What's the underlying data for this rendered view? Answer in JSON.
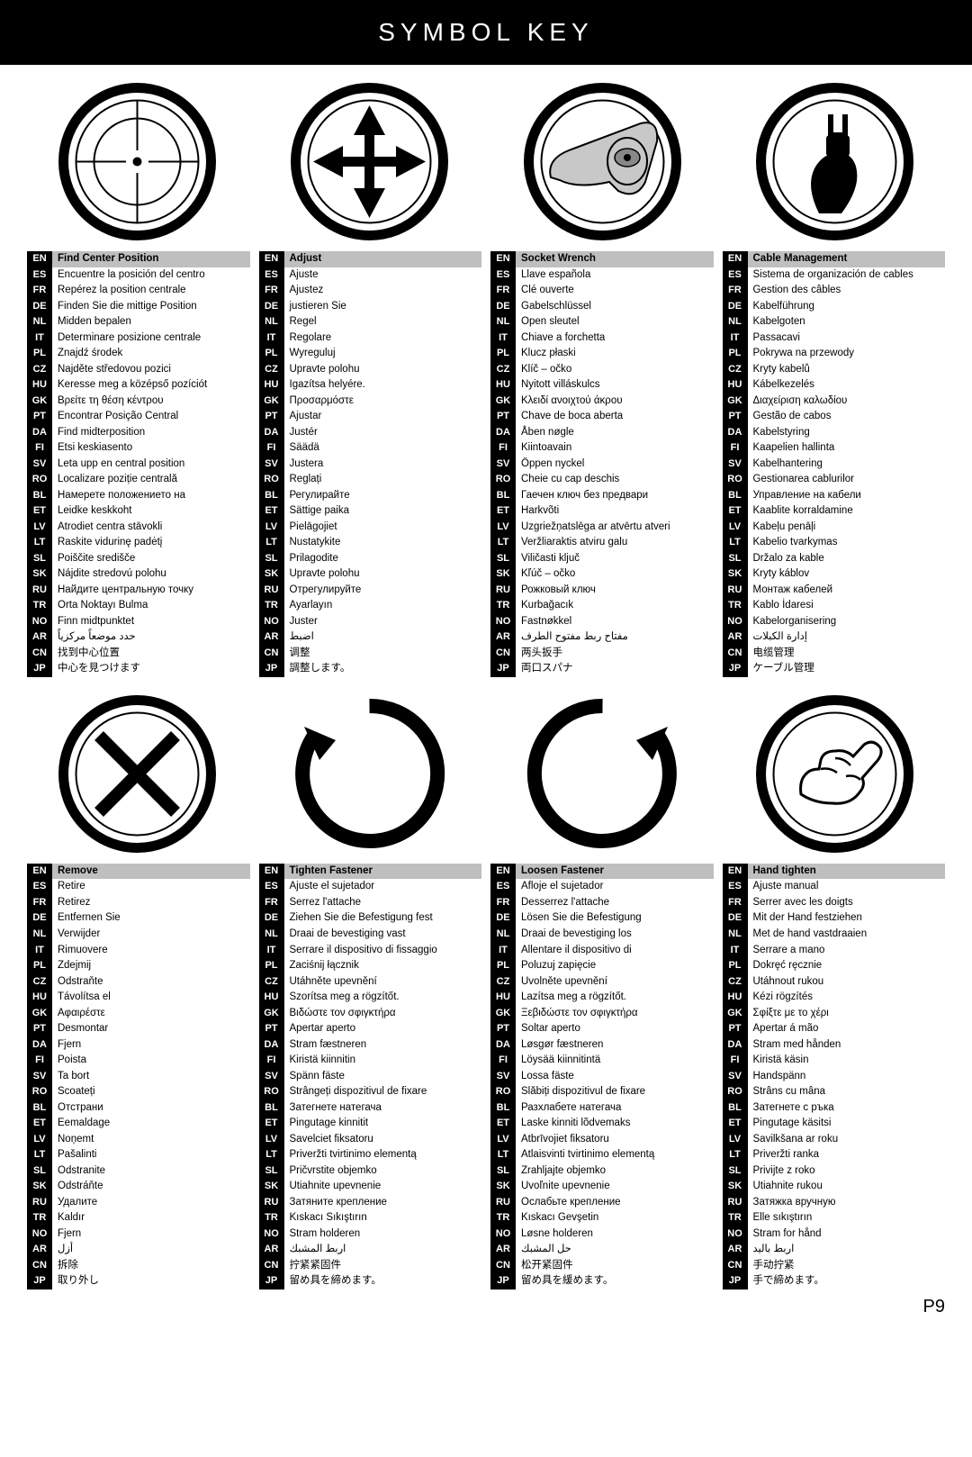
{
  "header": "SYMBOL KEY",
  "page_number": "P9",
  "languages": [
    "EN",
    "ES",
    "FR",
    "DE",
    "NL",
    "IT",
    "PL",
    "CZ",
    "HU",
    "GK",
    "PT",
    "DA",
    "FI",
    "SV",
    "RO",
    "BL",
    "ET",
    "LV",
    "LT",
    "SL",
    "SK",
    "RU",
    "TR",
    "NO",
    "AR",
    "CN",
    "JP"
  ],
  "columns_top": [
    {
      "head": "Find Center Position",
      "rows": [
        "Encuentre la posición del centro",
        "Repérez la position centrale",
        "Finden Sie die mittige Position",
        "Midden bepalen",
        "Determinare posizione centrale",
        "Znajdź środek",
        "Najděte středovou pozici",
        "Keresse meg a középső pozíciót",
        "Βρείτε τη θέση κέντρου",
        "Encontrar Posição Central",
        "Find midterposition",
        "Etsi keskiasento",
        "Leta upp en central position",
        "Localizare poziție centrală",
        "Намерете положението на",
        "Leidke keskkoht",
        "Atrodiet centra stāvokli",
        "Raskite vidurinę padėtį",
        "Poiščite središče",
        "Nájdite stredovú polohu",
        "Найдите центральную точку",
        "Orta Noktayı Bulma",
        "Finn midtpunktet",
        "حدد موضعاً مركزياً",
        "找到中心位置",
        "中心を見つけます"
      ]
    },
    {
      "head": "Adjust",
      "rows": [
        "Ajuste",
        "Ajustez",
        "justieren Sie",
        "Regel",
        "Regolare",
        "Wyreguluj",
        "Upravte polohu",
        "Igazítsa helyére.",
        "Προσαρμόστε",
        "Ajustar",
        "Justér",
        "Säädä",
        "Justera",
        "Reglați",
        "Регулирайте",
        "Sättige paika",
        "Pielāgojiet",
        "Nustatykite",
        "Prilagodite",
        "Upravte polohu",
        "Отрегулируйте",
        "Ayarlayın",
        "Juster",
        "اضبط",
        "调整",
        "調整します。"
      ]
    },
    {
      "head": "Socket Wrench",
      "rows": [
        "Llave española",
        "Clé ouverte",
        "Gabelschlüssel",
        "Open sleutel",
        "Chiave a forchetta",
        "Klucz płaski",
        "Klíč – očko",
        "Nyitott villáskulcs",
        "Κλειδί ανοιχτού άκρου",
        "Chave de boca aberta",
        "Åben nøgle",
        "Kiintoavain",
        "Öppen nyckel",
        "Cheie cu cap deschis",
        "Гаечен ключ без предвари",
        "Harkvõti",
        "Uzgriežņatslēga ar atvērtu atveri",
        "Veržliaraktis atviru galu",
        "Viličasti ključ",
        "Kľúč – očko",
        "Рожковый ключ",
        "Kurbağacık",
        "Fastnøkkel",
        "مفتاح ربط مفتوح الطرف",
        "两头扳手",
        "両口スパナ"
      ]
    },
    {
      "head": "Cable Management",
      "rows": [
        "Sistema de organización de cables",
        "Gestion des câbles",
        "Kabelführung",
        "Kabelgoten",
        "Passacavi",
        "Pokrywa na przewody",
        "Kryty kabelů",
        "Kábelkezelés",
        "Διαχείριση καλωδίου",
        "Gestão de cabos",
        "Kabelstyring",
        "Kaapelien hallinta",
        "Kabelhantering",
        "Gestionarea cablurilor",
        "Управление на кабели",
        "Kaablite korraldamine",
        "Kabeļu penāļi",
        "Kabelio tvarkymas",
        "Držalo za kable",
        "Kryty káblov",
        "Монтаж кабелей",
        "Kablo İdaresi",
        "Kabelorganisering",
        "إدارة الكبلات",
        "电缆管理",
        "ケーブル管理"
      ]
    }
  ],
  "columns_bottom": [
    {
      "head": "Remove",
      "rows": [
        "Retire",
        "Retirez",
        "Entfernen Sie",
        "Verwijder",
        "Rimuovere",
        "Zdejmij",
        "Odstraňte",
        "Távolítsa el",
        "Αφαιρέστε",
        "Desmontar",
        "Fjern",
        "Poista",
        "Ta bort",
        "Scoateți",
        "Отстрани",
        "Eemaldage",
        "Noņemt",
        "Pašalinti",
        "Odstranite",
        "Odstráňte",
        "Удалите",
        "Kaldır",
        "Fjern",
        "أزل",
        "拆除",
        "取り外し"
      ]
    },
    {
      "head": "Tighten Fastener",
      "rows": [
        "Ajuste el sujetador",
        "Serrez l'attache",
        "Ziehen Sie die Befestigung fest",
        "Draai de bevestiging vast",
        "Serrare il dispositivo di fissaggio",
        "Zaciśnij łącznik",
        "Utáhněte upevnění",
        "Szorítsa meg a rögzítőt.",
        "Βιδώστε τον σφιγκτήρα",
        "Apertar aperto",
        "Stram fæstneren",
        "Kiristä kiinnitin",
        "Spänn fäste",
        "Strângeți dispozitivul de fixare",
        "Затегнете натегача",
        "Pingutage kinnitit",
        "Savelciet fiksatoru",
        "Priveržti tvirtinimo elementą",
        "Pričvrstite objemko",
        "Utiahnite upevnenie",
        "Затяните крепление",
        "Kıskacı Sıkıştırın",
        "Stram holderen",
        "اربط المشبك",
        "拧紧紧固件",
        "留め具を締めます。"
      ]
    },
    {
      "head": "Loosen Fastener",
      "rows": [
        "Afloje el sujetador",
        "Desserrez l'attache",
        "Lösen Sie die Befestigung",
        "Draai de bevestiging los",
        "Allentare il dispositivo di",
        "Poluzuj zapięcie",
        "Uvolněte upevnění",
        "Lazítsa meg a rögzítőt.",
        "Ξεβιδώστε τον σφιγκτήρα",
        "Soltar aperto",
        "Løsgør fæstneren",
        "Löysää kiinnitintä",
        "Lossa fäste",
        "Slăbiți dispozitivul de fixare",
        "Разхлабете натегача",
        "Laske kinniti lõdvemaks",
        "Atbrīvojiet fiksatoru",
        "Atlaisvinti tvirtinimo elementą",
        "Zrahljajte objemko",
        "Uvoľnite upevnenie",
        "Ослабьте крепление",
        "Kıskacı Gevşetin",
        "Løsne holderen",
        "حل المشبك",
        "松开紧固件",
        "留め具を緩めます。"
      ]
    },
    {
      "head": "Hand tighten",
      "rows": [
        "Ajuste manual",
        "Serrer avec les doigts",
        "Mit der Hand festziehen",
        "Met de hand vastdraaien",
        "Serrare a mano",
        "Dokręć ręcznie",
        "Utáhnout rukou",
        "Kézi rögzítés",
        "Σφίξτε με το χέρι",
        "Apertar á mão",
        "Stram med hånden",
        "Kiristä käsin",
        "Handspänn",
        "Strâns cu mâna",
        "Затегнете с ръка",
        "Pingutage käsitsi",
        "Savilkšana ar roku",
        "Priveržti ranka",
        "Privijte z roko",
        "Utiahnite rukou",
        "Затяжка вручную",
        "Elle sıkıştırın",
        "Stram for hånd",
        "اربط باليد",
        "手动拧紧",
        "手で締めます。"
      ]
    }
  ]
}
